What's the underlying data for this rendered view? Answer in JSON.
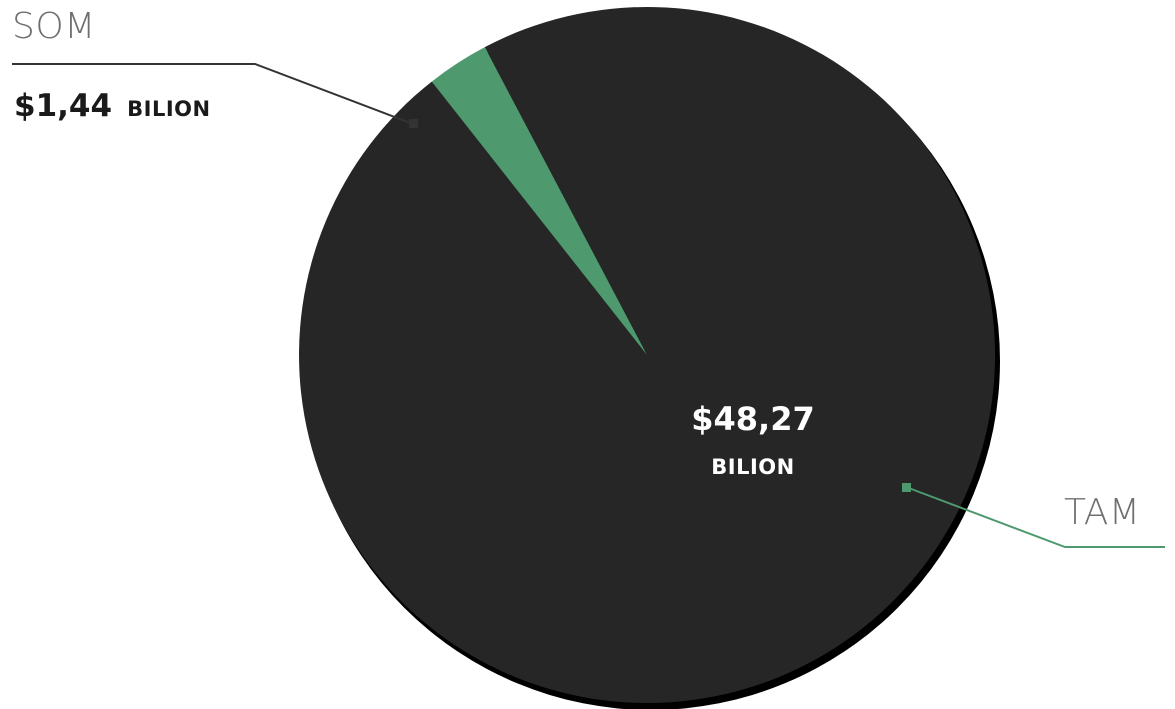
{
  "chart_data": {
    "type": "pie",
    "slices": [
      {
        "name": "TAM",
        "value": 48.27,
        "value_text": "$48,27",
        "unit_text": "BILION",
        "color": "#262626"
      },
      {
        "name": "SOM",
        "value": 1.44,
        "value_text": "$1,44",
        "unit_text": "BILION",
        "color": "#4e9a6e"
      }
    ],
    "legend": "none",
    "colors": {
      "background": "#ffffff",
      "som_leader": "#333333",
      "tam_leader": "#4e9a6e",
      "label_gray": "#6f6f6f",
      "center_text": "#ffffff",
      "som_value_text": "#1a1a1a",
      "shadow": "#000000"
    }
  }
}
